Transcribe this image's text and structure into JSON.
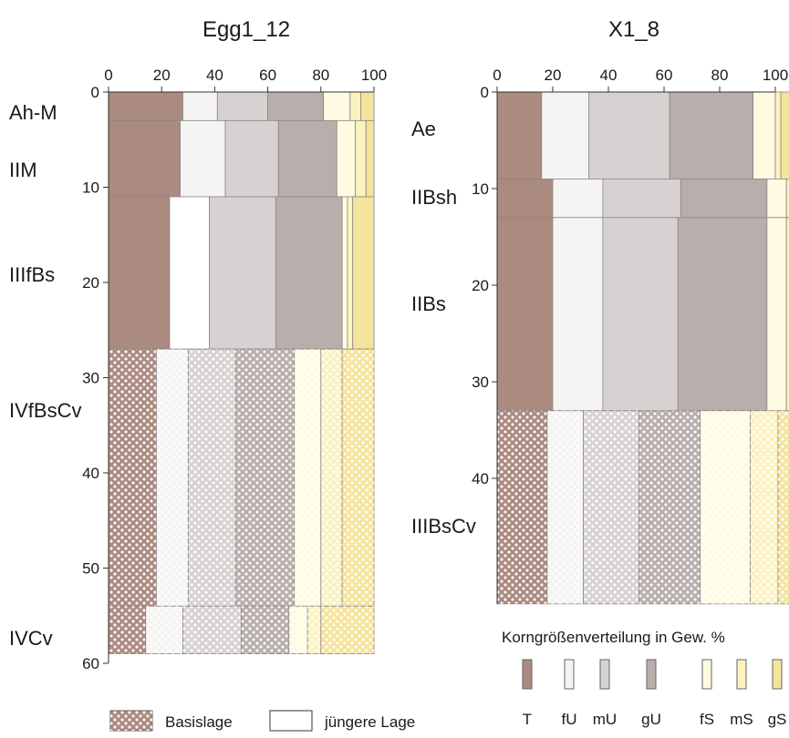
{
  "chart_data": [
    {
      "type": "stacked-bar-depth-profile",
      "title": "Egg1_12",
      "xlim": [
        0,
        100
      ],
      "x_ticks": [
        "0",
        "20",
        "40",
        "60",
        "80",
        "100"
      ],
      "ylim": [
        0,
        60
      ],
      "y_ticks": [
        {
          "label": "0",
          "value": 0
        },
        {
          "label": "10",
          "value": 10
        },
        {
          "label": "20",
          "value": 20
        },
        {
          "label": "30",
          "value": 30
        },
        {
          "label": "40",
          "value": 40
        },
        {
          "label": "50",
          "value": 50
        },
        {
          "label": "60",
          "value": 60
        }
      ],
      "categories": [
        "T",
        "fU",
        "mU",
        "gU",
        "fS",
        "mS",
        "gS"
      ],
      "horizons": [
        {
          "name": "Ah-M",
          "top": 0,
          "bottom": 3,
          "layer": "jüngere Lage",
          "values": [
            28,
            13,
            19,
            21,
            10,
            4,
            5
          ]
        },
        {
          "name": "IIM",
          "top": 3,
          "bottom": 11,
          "layer": "jüngere Lage",
          "values": [
            27,
            17,
            20,
            22,
            7,
            4,
            3
          ]
        },
        {
          "name": "IIIfBs",
          "top": 11,
          "bottom": 27,
          "layer": "jüngere Lage",
          "values": [
            23,
            15,
            25,
            25,
            2,
            2,
            8
          ]
        },
        {
          "name": "IVfBsCv",
          "top": 27,
          "bottom": 54,
          "layer": "Basislage",
          "values": [
            18,
            12,
            18,
            22,
            10,
            8,
            12
          ]
        },
        {
          "name": "IVCv",
          "top": 54,
          "bottom": 59,
          "layer": "Basislage",
          "values": [
            14,
            14,
            22,
            18,
            7,
            5,
            20
          ]
        }
      ]
    },
    {
      "type": "stacked-bar-depth-profile",
      "title": "X1_8",
      "xlim": [
        0,
        100
      ],
      "x_ticks": [
        "0",
        "20",
        "40",
        "60",
        "80",
        "100"
      ],
      "ylim": [
        0,
        50
      ],
      "y_ticks": [
        {
          "label": "0",
          "value": 0
        },
        {
          "label": "10",
          "value": 10
        },
        {
          "label": "20",
          "value": 20
        },
        {
          "label": "30",
          "value": 30
        },
        {
          "label": "40",
          "value": 40
        }
      ],
      "categories": [
        "T",
        "fU",
        "mU",
        "gU",
        "fS",
        "mS",
        "gS"
      ],
      "horizons": [
        {
          "name": "Ae",
          "top": 0,
          "bottom": 9,
          "layer": "jüngere Lage",
          "values": [
            16,
            17,
            29,
            30,
            8,
            2,
            6
          ]
        },
        {
          "name": "IIBsh",
          "top": 9,
          "bottom": 13,
          "layer": "jüngere Lage",
          "values": [
            20,
            18,
            28,
            31,
            7,
            2,
            5
          ]
        },
        {
          "name": "IIBs",
          "top": 13,
          "bottom": 33,
          "layer": "jüngere Lage",
          "values": [
            20,
            18,
            27,
            32,
            7,
            2,
            5
          ]
        },
        {
          "name": "IIIBsCv",
          "top": 33,
          "bottom": 53,
          "layer": "Basislage",
          "values": [
            18,
            13,
            20,
            22,
            18,
            10,
            12
          ]
        }
      ]
    }
  ],
  "texts": {
    "korn_title": "Korngrößenverteilung in Gew. %",
    "basislage": "Basislage",
    "juengere": "jüngere Lage",
    "legend_categories": [
      "T",
      "fU",
      "mU",
      "gU",
      "fS",
      "mS",
      "gS"
    ]
  },
  "colors": {
    "T": "#ab8a80",
    "fU": "#f4f4f2",
    "mU": "#d7d2d1",
    "gU": "#b8aeab",
    "fS": "#fefbe2",
    "mS": "#fbf2c0",
    "gS": "#f5e49c",
    "outline": "#8b8585",
    "text": "#1a1a1a"
  }
}
